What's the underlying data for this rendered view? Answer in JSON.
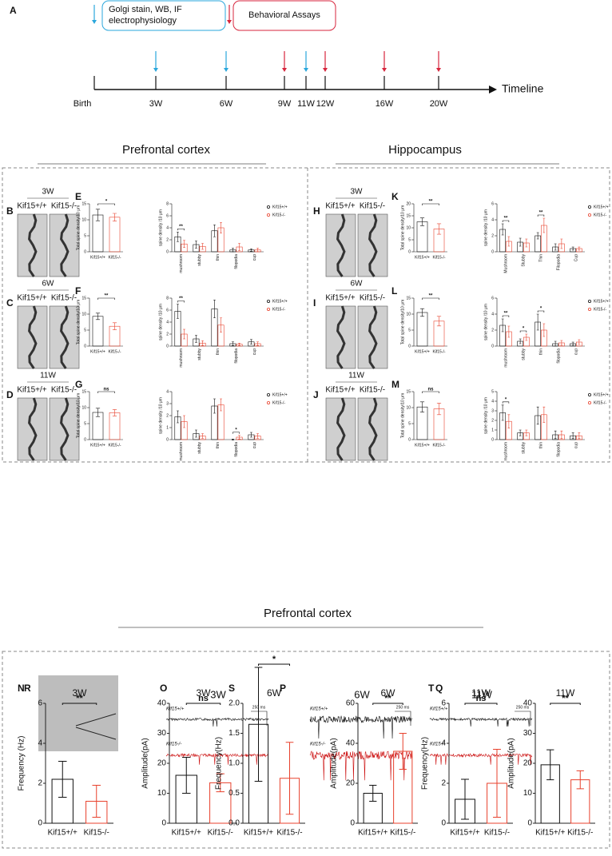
{
  "timeline": {
    "panel": "A",
    "legend": [
      [
        "Golgi stain, WB, IF",
        "electrophysiology"
      ],
      [
        "Behavioral Assays"
      ]
    ],
    "axis_label": "Timeline",
    "points": [
      "Birth",
      "3W",
      "6W",
      "9W",
      "11W",
      "12W",
      "16W",
      "20W"
    ]
  },
  "sections": [
    "Prefrontal cortex",
    "Hippocampus",
    "Prefrontal cortex"
  ],
  "image_panels": [
    {
      "panel": "B",
      "title": "3W",
      "labels": [
        "Kif15+/+",
        "Kif15-/-"
      ]
    },
    {
      "panel": "C",
      "title": "6W",
      "labels": [
        "Kif15+/+",
        "Kif15-/-"
      ]
    },
    {
      "panel": "D",
      "title": "11W",
      "labels": [
        "Kif15+/+",
        "Kif15-/-"
      ]
    },
    {
      "panel": "H",
      "title": "3W",
      "labels": [
        "Kif15+/+",
        "Kif15-/-"
      ]
    },
    {
      "panel": "I",
      "title": "6W",
      "labels": [
        "Kif15+/+",
        "Kif15-/-"
      ]
    },
    {
      "panel": "J",
      "title": "11W",
      "labels": [
        "Kif15+/+",
        "Kif15-/-"
      ]
    },
    {
      "panel": "N"
    }
  ],
  "trace_panels": [
    {
      "panel": "O",
      "title": "3W",
      "labels": [
        "Kif15+/+",
        "Kif15-/-"
      ],
      "scale": "250 ms"
    },
    {
      "panel": "P",
      "title": "6W",
      "labels": [
        "Kif15+/+",
        "Kif15-/-"
      ],
      "scale": "250 ms"
    },
    {
      "panel": "Q",
      "title": "11W",
      "labels": [
        "Kif15+/+",
        "Kif15-/-"
      ],
      "scale": "250 ms"
    }
  ],
  "chart_data": [
    {
      "type": "bar",
      "panel": "E",
      "ylabel": "Total spine density/10 μm",
      "categories": [
        "Kif15+/+",
        "Kif15-/-"
      ],
      "values": [
        11.5,
        10.8
      ],
      "errors": [
        1.8,
        1.2
      ],
      "colors": [
        "#111111",
        "#e8412c"
      ],
      "ylim": [
        0,
        15
      ],
      "yticks": [
        0,
        5,
        10,
        15
      ],
      "annotations": [
        {
          "text": "*"
        }
      ]
    },
    {
      "type": "grouped",
      "ylabel": "spine density /10 μm",
      "categories": [
        "mushroom",
        "stubby",
        "thin",
        "filopodia",
        "cup"
      ],
      "series": [
        {
          "name": "Kif15+/+",
          "color": "#111111",
          "values": [
            2.5,
            1.2,
            3.5,
            0.3,
            0.3
          ],
          "errors": [
            0.8,
            0.6,
            1.0,
            0.3,
            0.2
          ]
        },
        {
          "name": "Kif15-/-",
          "color": "#e8412c",
          "values": [
            1.3,
            0.9,
            4.0,
            0.8,
            0.3
          ],
          "errors": [
            0.6,
            0.5,
            0.9,
            0.6,
            0.3
          ]
        }
      ],
      "ylim": [
        0,
        8
      ],
      "yticks": [
        0,
        2,
        4,
        6,
        8
      ],
      "annotations": [
        {
          "text": "**",
          "category": "mushroom"
        }
      ]
    },
    {
      "type": "bar",
      "panel": "F",
      "ylabel": "Total spine density/10 μm",
      "categories": [
        "Kif15+/+",
        "Kif15-/-"
      ],
      "values": [
        9.3,
        6.2
      ],
      "errors": [
        1.0,
        1.1
      ],
      "colors": [
        "#111111",
        "#e8412c"
      ],
      "ylim": [
        0,
        15
      ],
      "yticks": [
        0,
        5,
        10,
        15
      ],
      "annotations": [
        {
          "text": "**"
        }
      ]
    },
    {
      "type": "grouped",
      "ylabel": "spine density /10 μm",
      "categories": [
        "mushroom",
        "stubby",
        "thin",
        "filopodia",
        "cup"
      ],
      "series": [
        {
          "name": "Kif15+/+",
          "color": "#111111",
          "values": [
            5.8,
            1.2,
            6.2,
            0.4,
            0.7
          ],
          "errors": [
            1.2,
            0.6,
            1.5,
            0.3,
            0.4
          ]
        },
        {
          "name": "Kif15-/-",
          "color": "#e8412c",
          "values": [
            2.0,
            0.5,
            3.5,
            0.3,
            0.4
          ],
          "errors": [
            0.8,
            0.4,
            1.2,
            0.2,
            0.3
          ]
        }
      ],
      "ylim": [
        0,
        8
      ],
      "yticks": [
        0,
        2,
        4,
        6,
        8
      ],
      "annotations": [
        {
          "text": "**",
          "category": "mushroom"
        }
      ]
    },
    {
      "type": "bar",
      "panel": "G",
      "ylabel": "Total spine density/10 μm",
      "categories": [
        "Kif15+/+",
        "Kif15-/-"
      ],
      "values": [
        8.5,
        8.4
      ],
      "errors": [
        1.3,
        1.0
      ],
      "colors": [
        "#111111",
        "#e8412c"
      ],
      "ylim": [
        0,
        15
      ],
      "yticks": [
        0,
        5,
        10,
        15
      ],
      "annotations": [
        {
          "text": "ns"
        }
      ]
    },
    {
      "type": "grouped",
      "ylabel": "spine density /10 μm",
      "categories": [
        "mushroom",
        "stubby",
        "thin",
        "filopodia",
        "cup"
      ],
      "series": [
        {
          "name": "Kif15+/+",
          "color": "#111111",
          "values": [
            1.9,
            0.5,
            2.8,
            0.0,
            0.4
          ],
          "errors": [
            0.5,
            0.3,
            0.6,
            0.05,
            0.2
          ]
        },
        {
          "name": "Kif15-/-",
          "color": "#e8412c",
          "values": [
            1.5,
            0.3,
            2.9,
            0.2,
            0.3
          ],
          "errors": [
            0.5,
            0.2,
            0.5,
            0.15,
            0.2
          ]
        }
      ],
      "ylim": [
        0,
        4
      ],
      "yticks": [
        0,
        1,
        2,
        3,
        4
      ],
      "annotations": [
        {
          "text": "*",
          "category": "filopodia"
        }
      ]
    },
    {
      "type": "bar",
      "panel": "K",
      "ylabel": "Total spine density/10 μm",
      "categories": [
        "Kif15+/+",
        "Kif15-/-"
      ],
      "values": [
        12.5,
        9.5
      ],
      "errors": [
        1.6,
        2.2
      ],
      "colors": [
        "#111111",
        "#e8412c"
      ],
      "ylim": [
        0,
        20
      ],
      "yticks": [
        0,
        5,
        10,
        15,
        20
      ],
      "annotations": [
        {
          "text": "**"
        }
      ]
    },
    {
      "type": "grouped",
      "ylabel": "spine density /10 μm",
      "categories": [
        "Mushroom",
        "Stubby",
        "Thin",
        "Filopodia",
        "Cup"
      ],
      "series": [
        {
          "name": "Kif15+/+",
          "color": "#111111",
          "values": [
            2.8,
            1.2,
            2.0,
            0.6,
            0.4
          ],
          "errors": [
            0.7,
            0.5,
            0.4,
            0.4,
            0.2
          ]
        },
        {
          "name": "Kif15-/-",
          "color": "#e8412c",
          "values": [
            1.3,
            1.1,
            3.3,
            1.0,
            0.4
          ],
          "errors": [
            0.6,
            0.5,
            0.9,
            0.6,
            0.2
          ]
        }
      ],
      "ylim": [
        0,
        6
      ],
      "yticks": [
        0,
        2,
        4,
        6
      ],
      "annotations": [
        {
          "text": "**",
          "category": "Mushroom"
        },
        {
          "text": "**",
          "category": "Thin"
        }
      ]
    },
    {
      "type": "bar",
      "panel": "L",
      "ylabel": "Total spine density/10 μm",
      "categories": [
        "Kif15+/+",
        "Kif15-/-"
      ],
      "values": [
        10.5,
        7.8
      ],
      "errors": [
        1.2,
        1.5
      ],
      "colors": [
        "#111111",
        "#e8412c"
      ],
      "ylim": [
        0,
        15
      ],
      "yticks": [
        0,
        5,
        10,
        15
      ],
      "annotations": [
        {
          "text": "**"
        }
      ]
    },
    {
      "type": "grouped",
      "ylabel": "spine density /10 μm",
      "categories": [
        "mushroom",
        "stubby",
        "thin",
        "filopodia",
        "cup"
      ],
      "series": [
        {
          "name": "Kif15+/+",
          "color": "#111111",
          "values": [
            2.6,
            0.6,
            3.0,
            0.3,
            0.3
          ],
          "errors": [
            0.8,
            0.3,
            1.0,
            0.3,
            0.2
          ]
        },
        {
          "name": "Kif15-/-",
          "color": "#e8412c",
          "values": [
            1.8,
            1.1,
            2.0,
            0.4,
            0.5
          ],
          "errors": [
            0.7,
            0.4,
            0.8,
            0.3,
            0.3
          ]
        }
      ],
      "ylim": [
        0,
        6
      ],
      "yticks": [
        0,
        2,
        4,
        6
      ],
      "annotations": [
        {
          "text": "**",
          "category": "mushroom"
        },
        {
          "text": "*",
          "category": "stubby"
        },
        {
          "text": "*",
          "category": "thin"
        }
      ]
    },
    {
      "type": "bar",
      "panel": "M",
      "ylabel": "Total spine density/10 μm",
      "categories": [
        "Kif15+/+",
        "Kif15-/-"
      ],
      "values": [
        10.2,
        9.6
      ],
      "errors": [
        1.6,
        1.8
      ],
      "colors": [
        "#111111",
        "#e8412c"
      ],
      "ylim": [
        0,
        15
      ],
      "yticks": [
        0,
        5,
        10,
        15
      ],
      "annotations": [
        {
          "text": "ns"
        }
      ]
    },
    {
      "type": "grouped",
      "ylabel": "spine density /10 μm",
      "categories": [
        "mushroom",
        "stubby",
        "thin",
        "filopodia",
        "cup"
      ],
      "series": [
        {
          "name": "Kif15+/+",
          "color": "#111111",
          "values": [
            2.8,
            0.7,
            2.5,
            0.5,
            0.4
          ],
          "errors": [
            0.8,
            0.3,
            0.9,
            0.4,
            0.3
          ]
        },
        {
          "name": "Kif15-/-",
          "color": "#e8412c",
          "values": [
            1.9,
            0.7,
            2.6,
            0.5,
            0.4
          ],
          "errors": [
            0.7,
            0.3,
            0.8,
            0.4,
            0.3
          ]
        }
      ],
      "ylim": [
        0,
        5
      ],
      "yticks": [
        0,
        1,
        2,
        3,
        4,
        5
      ],
      "annotations": [
        {
          "text": "*",
          "category": "mushroom"
        }
      ]
    },
    {
      "type": "bar",
      "panel": "R",
      "title": "3W",
      "ylabel": "Frequency (Hz)",
      "categories": [
        "Kif15+/+",
        "Kif15-/-"
      ],
      "values": [
        2.2,
        1.1
      ],
      "errors": [
        0.9,
        0.8
      ],
      "colors": [
        "#111111",
        "#e8412c"
      ],
      "ylim": [
        0,
        6
      ],
      "yticks": [
        0,
        2,
        4,
        6
      ],
      "annotations": [
        {
          "text": "**"
        }
      ]
    },
    {
      "type": "bar",
      "title": "3W",
      "ylabel": "Amplitude(pA)",
      "categories": [
        "Kif15+/+",
        "Kif15-/-"
      ],
      "values": [
        16,
        13.5
      ],
      "errors": [
        6,
        3
      ],
      "colors": [
        "#111111",
        "#e8412c"
      ],
      "ylim": [
        0,
        40
      ],
      "yticks": [
        0,
        10,
        20,
        30,
        40
      ],
      "annotations": [
        {
          "text": "ns"
        }
      ]
    },
    {
      "type": "bar",
      "panel": "S",
      "title": "6W",
      "ylabel": "Frequency(Hz)",
      "categories": [
        "Kif15+/+",
        "Kif15-/-"
      ],
      "values": [
        1.65,
        0.75
      ],
      "errors": [
        0.95,
        0.6
      ],
      "colors": [
        "#111111",
        "#e8412c"
      ],
      "ylim": [
        0,
        2
      ],
      "yticks": [
        {
          "value": 0,
          "label": "0.0"
        },
        {
          "value": 0.5,
          "label": "0.5"
        },
        {
          "value": 1,
          "label": "1.0"
        },
        {
          "value": 1.5,
          "label": "1.5"
        },
        {
          "value": 2,
          "label": "2.0"
        }
      ],
      "annotations": [
        {
          "text": "*"
        }
      ]
    },
    {
      "type": "bar",
      "title": "6W",
      "ylabel": "Amplitude(pA)",
      "categories": [
        "Kif15+/+",
        "Kif15-/-"
      ],
      "values": [
        15,
        36
      ],
      "errors": [
        4,
        9
      ],
      "colors": [
        "#111111",
        "#e8412c"
      ],
      "ylim": [
        0,
        60
      ],
      "yticks": [
        0,
        20,
        40,
        60
      ],
      "annotations": [
        {
          "text": "**"
        }
      ]
    },
    {
      "type": "bar",
      "panel": "T",
      "title": "11W",
      "ylabel": "Frequency(Hz)",
      "categories": [
        "Kif15+/+",
        "Kif15-/-"
      ],
      "values": [
        1.2,
        2.0
      ],
      "errors": [
        1.0,
        1.7
      ],
      "colors": [
        "#111111",
        "#e8412c"
      ],
      "ylim": [
        0,
        6
      ],
      "yticks": [
        0,
        2,
        4,
        6
      ],
      "annotations": [
        {
          "text": "ns"
        }
      ]
    },
    {
      "type": "bar",
      "title": "11W",
      "ylabel": "Amplitude(pA)",
      "categories": [
        "Kif15+/+",
        "Kif15-/-"
      ],
      "values": [
        19.5,
        14.5
      ],
      "errors": [
        5,
        3
      ],
      "colors": [
        "#111111",
        "#e8412c"
      ],
      "ylim": [
        0,
        40
      ],
      "yticks": [
        0,
        10,
        20,
        30,
        40
      ],
      "annotations": [
        {
          "text": "**"
        }
      ]
    }
  ]
}
